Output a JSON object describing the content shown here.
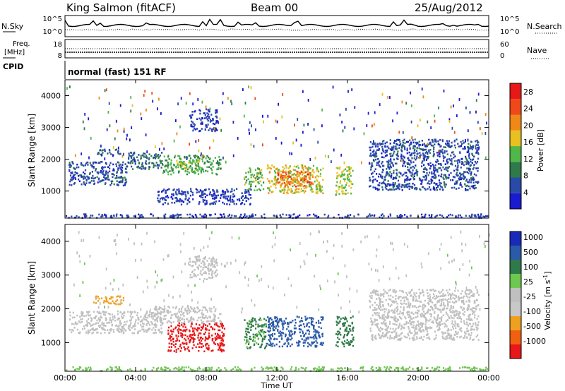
{
  "header": {
    "station": "King Salmon (fitACF)",
    "beam": "Beam 00",
    "date": "25/Aug/2012"
  },
  "noise_panel": {
    "left_label": "N.Sky",
    "right_label": "N.Search",
    "left_ticks": [
      "10^5",
      "10^0"
    ],
    "right_ticks": [
      "10^5",
      "10^0"
    ]
  },
  "freq_panel": {
    "left_label_line1": "Freq.",
    "left_label_line2": "[MHz]",
    "right_label": "Nave",
    "left_ticks": [
      "18",
      "8"
    ],
    "right_ticks": [
      "60",
      "0"
    ]
  },
  "cpid": {
    "label": "CPID",
    "text": "normal (fast) 151 RF"
  },
  "x_axis": {
    "label": "Time UT",
    "tick_labels": [
      "00:00",
      "04:00",
      "08:00",
      "12:00",
      "16:00",
      "20:00",
      "00:00"
    ]
  },
  "colors": {
    "power": [
      "#1a1ad0",
      "#2a4aa8",
      "#2f7a4a",
      "#4fb848",
      "#e8c020",
      "#f08818",
      "#f04818",
      "#e81818"
    ],
    "velocity": [
      "#1a2ab8",
      "#2a5aa8",
      "#2f7a4a",
      "#6ec850",
      "#c0c0c0",
      "#c8c8c8",
      "#f0a020",
      "#f06010",
      "#e81818"
    ]
  },
  "chart_data": [
    {
      "type": "heatmap",
      "title": "",
      "xlabel": "",
      "ylabel": "Slant Range [km]",
      "xlim": [
        0,
        24
      ],
      "ylim": [
        150,
        4500
      ],
      "y_tick_labels": [
        "1000",
        "2000",
        "3000",
        "4000"
      ],
      "colorbar": {
        "label": "Power [dB]",
        "tick_labels": [
          "4",
          "8",
          "12",
          "16",
          "20",
          "24",
          "28"
        ],
        "range": [
          0,
          30
        ]
      },
      "regions": [
        {
          "t0": 0.2,
          "t1": 3.5,
          "r0": 1200,
          "r1": 1950,
          "value": 6
        },
        {
          "t0": 1.8,
          "t1": 3.2,
          "r0": 2150,
          "r1": 2350,
          "value": 7
        },
        {
          "t0": 3.5,
          "t1": 5.5,
          "r0": 1700,
          "r1": 2250,
          "value": 8
        },
        {
          "t0": 5.5,
          "t1": 8.8,
          "r0": 1550,
          "r1": 2150,
          "value": 12
        },
        {
          "t0": 6.2,
          "t1": 7.6,
          "r0": 1700,
          "r1": 2000,
          "value": 16
        },
        {
          "t0": 7.0,
          "t1": 8.6,
          "r0": 2900,
          "r1": 3600,
          "value": 5
        },
        {
          "t0": 10.1,
          "t1": 11.2,
          "r0": 1050,
          "r1": 1750,
          "value": 14
        },
        {
          "t0": 11.4,
          "t1": 14.6,
          "r0": 950,
          "r1": 1850,
          "value": 18
        },
        {
          "t0": 12.0,
          "t1": 14.0,
          "r0": 1150,
          "r1": 1650,
          "value": 24
        },
        {
          "t0": 15.3,
          "t1": 16.3,
          "r0": 900,
          "r1": 1800,
          "value": 16
        },
        {
          "t0": 17.2,
          "t1": 23.4,
          "r0": 1050,
          "r1": 2650,
          "value": 6
        },
        {
          "t0": 5.2,
          "t1": 10.5,
          "r0": 600,
          "r1": 1100,
          "value": 5
        },
        {
          "t0": 0.0,
          "t1": 24.0,
          "r0": 180,
          "r1": 300,
          "value": 5
        }
      ]
    },
    {
      "type": "heatmap",
      "title": "",
      "xlabel": "Time UT",
      "ylabel": "Slant Range [km]",
      "xlim": [
        0,
        24
      ],
      "ylim": [
        150,
        4500
      ],
      "y_tick_labels": [
        "1000",
        "2000",
        "3000",
        "4000"
      ],
      "colorbar": {
        "label": "Velocity [m s^-1]",
        "tick_labels": [
          "1000",
          "500",
          "100",
          "25",
          "-25",
          "-100",
          "-500",
          "-1000"
        ]
      },
      "regions": [
        {
          "t0": 0.2,
          "t1": 5.5,
          "r0": 1300,
          "r1": 1950,
          "value": 0
        },
        {
          "t0": 1.5,
          "t1": 3.3,
          "r0": 2150,
          "r1": 2400,
          "value": -200
        },
        {
          "t0": 5.0,
          "t1": 8.8,
          "r0": 1600,
          "r1": 2100,
          "value": 0
        },
        {
          "t0": 5.8,
          "t1": 9.0,
          "r0": 750,
          "r1": 1600,
          "value": -800
        },
        {
          "t0": 7.0,
          "t1": 8.6,
          "r0": 2900,
          "r1": 3600,
          "value": 0
        },
        {
          "t0": 10.1,
          "t1": 11.4,
          "r0": 850,
          "r1": 1750,
          "value": 120
        },
        {
          "t0": 11.4,
          "t1": 14.6,
          "r0": 900,
          "r1": 1800,
          "value": 400
        },
        {
          "t0": 15.3,
          "t1": 16.3,
          "r0": 900,
          "r1": 1800,
          "value": 150
        },
        {
          "t0": 17.2,
          "t1": 23.4,
          "r0": 1100,
          "r1": 2600,
          "value": 0
        },
        {
          "t0": 0.0,
          "t1": 24.0,
          "r0": 180,
          "r1": 300,
          "value": 60
        }
      ]
    }
  ]
}
